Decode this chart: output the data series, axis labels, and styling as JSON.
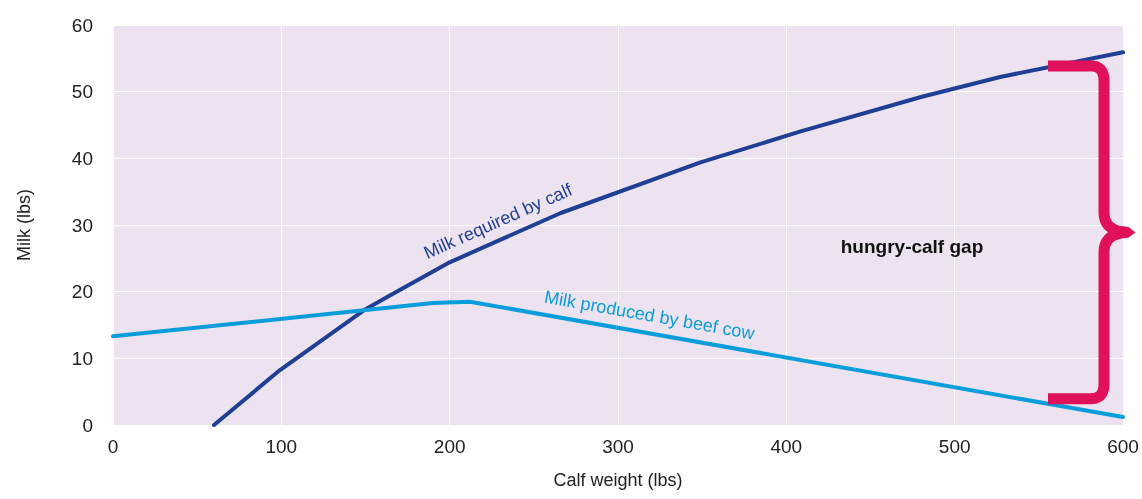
{
  "chart_data": {
    "type": "line",
    "xlabel": "Calf weight (lbs)",
    "ylabel": "Milk (lbs)",
    "xlim": [
      0,
      600
    ],
    "ylim": [
      0,
      60
    ],
    "xticks": [
      0,
      100,
      200,
      300,
      400,
      500,
      600
    ],
    "yticks": [
      0,
      10,
      20,
      30,
      40,
      50,
      60
    ],
    "grid": true,
    "marker": "none",
    "series": [
      {
        "name": "Milk required by calf",
        "color": "#1f3f94",
        "x": [
          60,
          99,
          149,
          165,
          200,
          266,
          349,
          408,
          480,
          527,
          600
        ],
        "values": [
          0,
          8.2,
          17.2,
          19.5,
          24.4,
          31.8,
          39.4,
          44,
          49.2,
          52.2,
          55.9
        ]
      },
      {
        "name": "Milk produced by beef cow",
        "color": "#0a9ddb",
        "x": [
          0,
          190,
          212,
          600
        ],
        "values": [
          13.3,
          18.3,
          18.5,
          1.2
        ]
      }
    ],
    "annotations": [
      "hungry-calf gap"
    ]
  }
}
